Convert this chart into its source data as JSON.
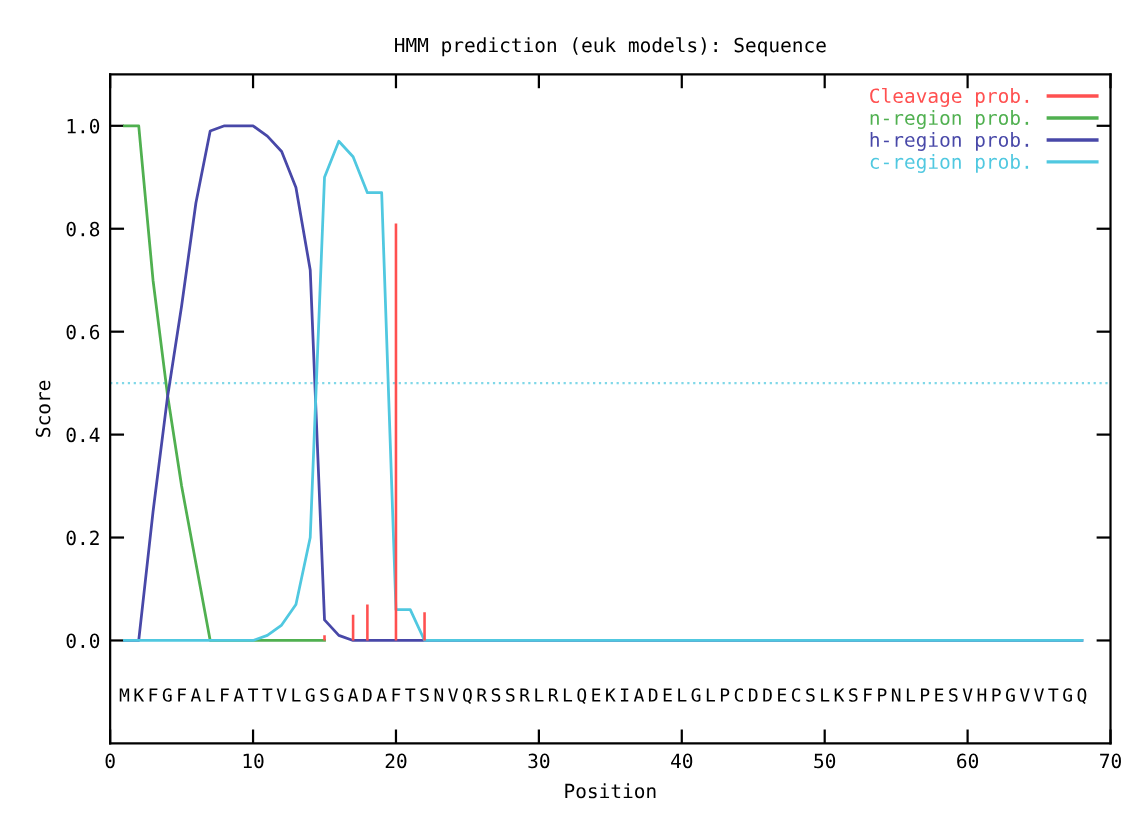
{
  "chart_data": {
    "type": "line",
    "title": "HMM prediction (euk models): Sequence",
    "xlabel": "Position",
    "ylabel": "Score",
    "xlim": [
      0,
      70
    ],
    "xticks": [
      0,
      10,
      20,
      30,
      40,
      50,
      60,
      70
    ],
    "ylim": [
      -0.2,
      1.1
    ],
    "yticks": [
      {
        "value": 0,
        "label": "0.0"
      },
      {
        "value": 0.2,
        "label": "0.2"
      },
      {
        "value": 0.4,
        "label": "0.4"
      },
      {
        "value": 0.6,
        "label": "0.6"
      },
      {
        "value": 0.8,
        "label": "0.8"
      },
      {
        "value": 1,
        "label": "1.0"
      }
    ],
    "grid": false,
    "legend": "top right",
    "line_style": "solid",
    "series": [
      {
        "name": "Cleavage prob.",
        "type": "bar",
        "color": "#ff5050",
        "x": [
          15,
          17,
          18,
          20,
          22
        ],
        "values": [
          0.01,
          0.05,
          0.07,
          0.81,
          0.055
        ]
      },
      {
        "name": "n-region prob.",
        "color": "#50b050",
        "x": [
          1,
          2,
          3,
          4,
          5,
          6,
          7,
          15
        ],
        "values": [
          1.0,
          1.0,
          0.7,
          0.48,
          0.3,
          0.15,
          0,
          0
        ]
      },
      {
        "name": "h-region prob.",
        "color": "#4848a8",
        "x": [
          1,
          2,
          3,
          4,
          5,
          6,
          7,
          8,
          9,
          10,
          11,
          12,
          13,
          14,
          15,
          16,
          17,
          68
        ],
        "values": [
          0,
          0,
          0.25,
          0.47,
          0.65,
          0.85,
          0.99,
          1.0,
          1.0,
          1.0,
          0.98,
          0.95,
          0.88,
          0.72,
          0.04,
          0.01,
          0,
          0
        ]
      },
      {
        "name": "c-region prob.",
        "color": "#50c8e0",
        "x": [
          1,
          10,
          11,
          12,
          13,
          14,
          15,
          16,
          17,
          18,
          19,
          20,
          21,
          22,
          68
        ],
        "values": [
          0,
          0,
          0.01,
          0.03,
          0.07,
          0.2,
          0.9,
          0.97,
          0.94,
          0.87,
          0.87,
          0.06,
          0.06,
          0,
          0
        ]
      }
    ],
    "ref_lines": [
      {
        "axis": "y",
        "value": 0.5,
        "color": "#80d8e8",
        "line_style": "dotted"
      }
    ],
    "annotations": [
      "MKFGFALFATTVLGSGADAFTSNVQRSSRLRLQEKIADELGLPCDDECSLKSFPNLPESVHPGVVTGQ"
    ]
  }
}
